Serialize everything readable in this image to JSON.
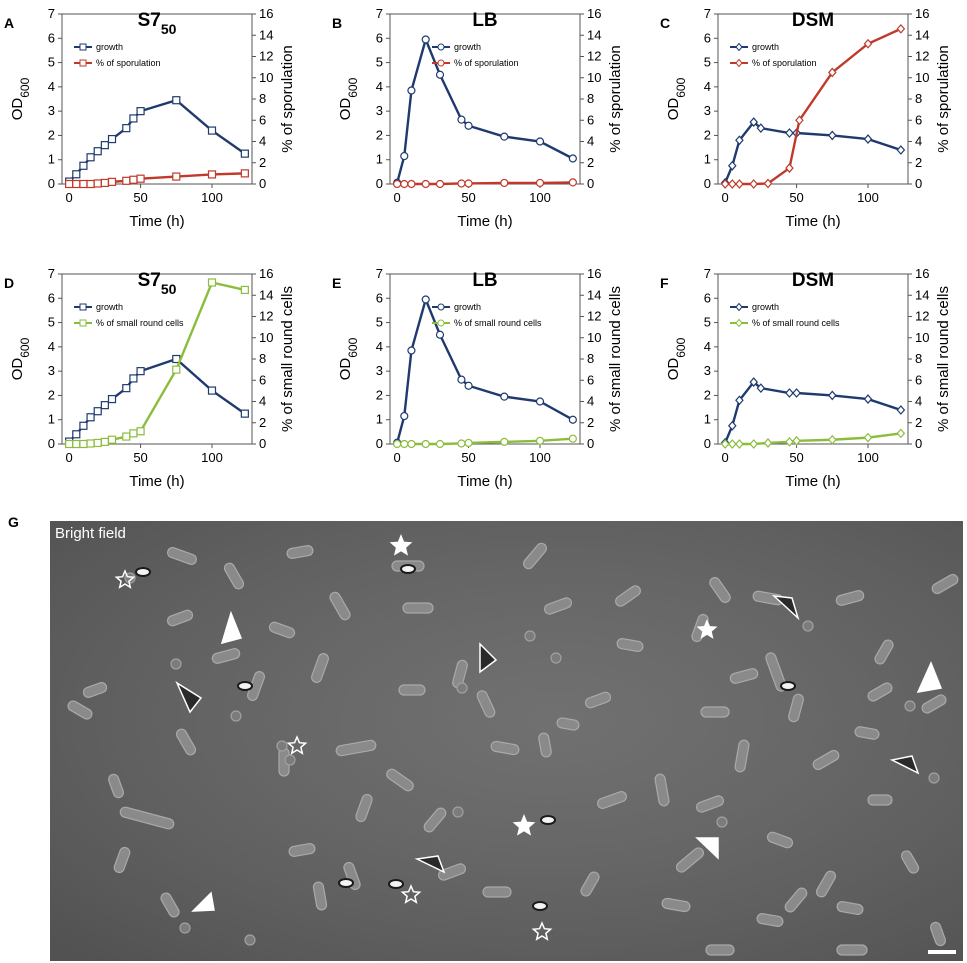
{
  "colors": {
    "growth": "#1f3a6e",
    "sporulation": "#c0392b",
    "small_round_cells": "#8bbd3c",
    "micrograph_bg": "#6b6b6b"
  },
  "chart_data": [
    {
      "panel": "A",
      "type": "line",
      "title": "S7",
      "title_sub": "50",
      "xlabel": "Time (h)",
      "ylabel": "OD",
      "ylabel_sub": "600",
      "y2label": "% of sporulation",
      "xlim": [
        -5,
        128
      ],
      "ylim": [
        0,
        7
      ],
      "y2lim": [
        0,
        16
      ],
      "xticks": [
        "0",
        "50",
        "100"
      ],
      "yticks": [
        "0",
        "1",
        "2",
        "3",
        "4",
        "5",
        "6",
        "7"
      ],
      "y2ticks": [
        "0",
        "2",
        "4",
        "6",
        "8",
        "10",
        "12",
        "14",
        "16"
      ],
      "legend_position": "top-left",
      "series": [
        {
          "name": "growth",
          "axis": "left",
          "marker": "square",
          "x": [
            0,
            5,
            10,
            15,
            20,
            25,
            30,
            40,
            45,
            50,
            75,
            100,
            123
          ],
          "y": [
            0.1,
            0.4,
            0.75,
            1.1,
            1.35,
            1.6,
            1.85,
            2.3,
            2.7,
            3.0,
            3.45,
            2.2,
            1.25
          ]
        },
        {
          "name": "% of sporulation",
          "axis": "right",
          "marker": "square",
          "x": [
            0,
            5,
            10,
            15,
            20,
            25,
            30,
            40,
            45,
            50,
            75,
            100,
            123
          ],
          "y": [
            0,
            0,
            0,
            0,
            0.05,
            0.1,
            0.2,
            0.3,
            0.4,
            0.5,
            0.7,
            0.9,
            1.0
          ]
        }
      ]
    },
    {
      "panel": "B",
      "type": "line",
      "title": "LB",
      "title_sub": "",
      "xlabel": "Time (h)",
      "ylabel": "OD",
      "ylabel_sub": "600",
      "y2label": "% of sporulation",
      "xlim": [
        -5,
        128
      ],
      "ylim": [
        0,
        7
      ],
      "y2lim": [
        0,
        16
      ],
      "xticks": [
        "0",
        "50",
        "100"
      ],
      "yticks": [
        "0",
        "1",
        "2",
        "3",
        "4",
        "5",
        "6",
        "7"
      ],
      "y2ticks": [
        "0",
        "2",
        "4",
        "6",
        "8",
        "10",
        "12",
        "14",
        "16"
      ],
      "legend_position": "top-right",
      "series": [
        {
          "name": "growth",
          "axis": "left",
          "marker": "circle",
          "x": [
            0,
            5,
            10,
            20,
            30,
            45,
            50,
            75,
            100,
            123
          ],
          "y": [
            0.05,
            1.15,
            3.85,
            5.95,
            4.5,
            2.65,
            2.4,
            1.95,
            1.75,
            1.05
          ]
        },
        {
          "name": "% of sporulation",
          "axis": "right",
          "marker": "circle",
          "x": [
            0,
            5,
            10,
            20,
            30,
            45,
            50,
            75,
            100,
            123
          ],
          "y": [
            0,
            0,
            0,
            0,
            0,
            0.05,
            0.05,
            0.1,
            0.1,
            0.15
          ]
        }
      ]
    },
    {
      "panel": "C",
      "type": "line",
      "title": "DSM",
      "title_sub": "",
      "xlabel": "Time (h)",
      "ylabel": "OD",
      "ylabel_sub": "600",
      "y2label": "% of sporulation",
      "xlim": [
        -5,
        128
      ],
      "ylim": [
        0,
        7
      ],
      "y2lim": [
        0,
        16
      ],
      "xticks": [
        "0",
        "50",
        "100"
      ],
      "yticks": [
        "0",
        "1",
        "2",
        "3",
        "4",
        "5",
        "6",
        "7"
      ],
      "y2ticks": [
        "0",
        "2",
        "4",
        "6",
        "8",
        "10",
        "12",
        "14",
        "16"
      ],
      "legend_position": "top-left",
      "series": [
        {
          "name": "growth",
          "axis": "left",
          "marker": "diamond",
          "x": [
            0,
            5,
            10,
            20,
            25,
            45,
            50,
            75,
            100,
            123
          ],
          "y": [
            0.05,
            0.75,
            1.8,
            2.55,
            2.3,
            2.1,
            2.1,
            2.0,
            1.85,
            1.4
          ]
        },
        {
          "name": "% of sporulation",
          "axis": "right",
          "marker": "diamond",
          "x": [
            0,
            5,
            10,
            20,
            30,
            45,
            52,
            75,
            100,
            123
          ],
          "y": [
            0,
            0,
            0,
            0,
            0.05,
            1.5,
            6,
            10.5,
            13.2,
            14.6
          ]
        }
      ]
    },
    {
      "panel": "D",
      "type": "line",
      "title": "S7",
      "title_sub": "50",
      "xlabel": "Time (h)",
      "ylabel": "OD",
      "ylabel_sub": "600",
      "y2label": "% of small round cells",
      "xlim": [
        -5,
        128
      ],
      "ylim": [
        0,
        7
      ],
      "y2lim": [
        0,
        16
      ],
      "xticks": [
        "0",
        "50",
        "100"
      ],
      "yticks": [
        "0",
        "1",
        "2",
        "3",
        "4",
        "5",
        "6",
        "7"
      ],
      "y2ticks": [
        "0",
        "2",
        "4",
        "6",
        "8",
        "10",
        "12",
        "14",
        "16"
      ],
      "legend_position": "top-left",
      "series": [
        {
          "name": "growth",
          "axis": "left",
          "marker": "square",
          "x": [
            0,
            5,
            10,
            15,
            20,
            25,
            30,
            40,
            45,
            50,
            75,
            100,
            123
          ],
          "y": [
            0.1,
            0.4,
            0.75,
            1.1,
            1.35,
            1.6,
            1.85,
            2.3,
            2.7,
            3.0,
            3.5,
            2.2,
            1.25
          ]
        },
        {
          "name": "% of small round cells",
          "axis": "right",
          "marker": "square",
          "x": [
            0,
            5,
            10,
            15,
            20,
            25,
            30,
            40,
            45,
            50,
            75,
            100,
            123
          ],
          "y": [
            0,
            0,
            0,
            0.05,
            0.1,
            0.2,
            0.4,
            0.7,
            1.0,
            1.2,
            7.0,
            15.2,
            14.5
          ]
        }
      ]
    },
    {
      "panel": "E",
      "type": "line",
      "title": "LB",
      "title_sub": "",
      "xlabel": "Time (h)",
      "ylabel": "OD",
      "ylabel_sub": "600",
      "y2label": "% of small round cells",
      "xlim": [
        -5,
        128
      ],
      "ylim": [
        0,
        7
      ],
      "y2lim": [
        0,
        16
      ],
      "xticks": [
        "0",
        "50",
        "100"
      ],
      "yticks": [
        "0",
        "1",
        "2",
        "3",
        "4",
        "5",
        "6",
        "7"
      ],
      "y2ticks": [
        "0",
        "2",
        "4",
        "6",
        "8",
        "10",
        "12",
        "14",
        "16"
      ],
      "legend_position": "top-right",
      "series": [
        {
          "name": "growth",
          "axis": "left",
          "marker": "circle",
          "x": [
            0,
            5,
            10,
            20,
            30,
            45,
            50,
            75,
            100,
            123
          ],
          "y": [
            0.05,
            1.15,
            3.85,
            5.95,
            4.5,
            2.65,
            2.4,
            1.95,
            1.75,
            1.0
          ]
        },
        {
          "name": "% of small round cells",
          "axis": "right",
          "marker": "circle",
          "x": [
            0,
            5,
            10,
            20,
            30,
            45,
            50,
            75,
            100,
            123
          ],
          "y": [
            0,
            0,
            0,
            0,
            0,
            0.05,
            0.1,
            0.2,
            0.3,
            0.5
          ]
        }
      ]
    },
    {
      "panel": "F",
      "type": "line",
      "title": "DSM",
      "title_sub": "",
      "xlabel": "Time (h)",
      "ylabel": "OD",
      "ylabel_sub": "600",
      "y2label": "% of small round cells",
      "xlim": [
        -5,
        128
      ],
      "ylim": [
        0,
        7
      ],
      "y2lim": [
        0,
        16
      ],
      "xticks": [
        "0",
        "50",
        "100"
      ],
      "yticks": [
        "0",
        "1",
        "2",
        "3",
        "4",
        "5",
        "6",
        "7"
      ],
      "y2ticks": [
        "0",
        "2",
        "4",
        "6",
        "8",
        "10",
        "12",
        "14",
        "16"
      ],
      "legend_position": "top-left",
      "series": [
        {
          "name": "growth",
          "axis": "left",
          "marker": "diamond",
          "x": [
            0,
            5,
            10,
            20,
            25,
            45,
            50,
            75,
            100,
            123
          ],
          "y": [
            0.05,
            0.75,
            1.8,
            2.55,
            2.3,
            2.1,
            2.1,
            2.0,
            1.85,
            1.4
          ]
        },
        {
          "name": "% of small round cells",
          "axis": "right",
          "marker": "diamond",
          "x": [
            0,
            5,
            10,
            20,
            30,
            45,
            50,
            75,
            100,
            123
          ],
          "y": [
            0,
            0,
            0,
            0,
            0.1,
            0.2,
            0.3,
            0.4,
            0.6,
            1.0
          ]
        }
      ]
    }
  ],
  "micrograph": {
    "panel": "G",
    "label": "Bright field"
  }
}
